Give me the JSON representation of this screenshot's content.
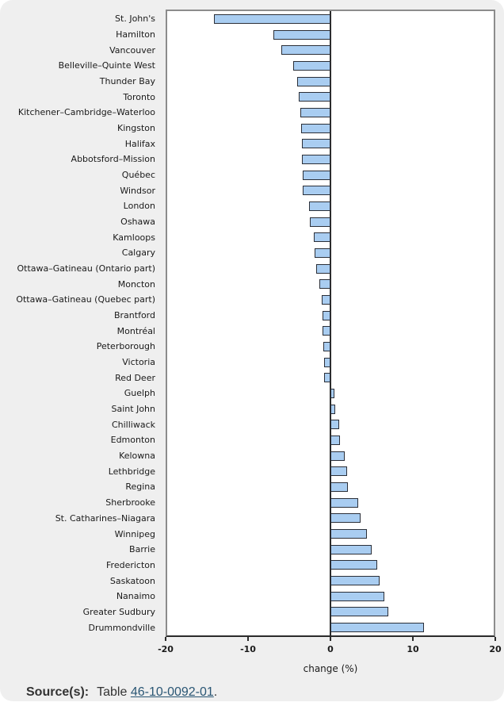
{
  "chart_data": {
    "type": "bar",
    "orientation": "horizontal",
    "title": "",
    "xlabel": "change (%)",
    "ylabel": "",
    "xlim": [
      -20,
      20
    ],
    "xticks": [
      -20,
      -10,
      0,
      10,
      20
    ],
    "grid": false,
    "legend": "none",
    "categories": [
      "St. John's",
      "Hamilton",
      "Vancouver",
      "Belleville–Quinte West",
      "Thunder Bay",
      "Toronto",
      "Kitchener–Cambridge–Waterloo",
      "Kingston",
      "Halifax",
      "Abbotsford–Mission",
      "Québec",
      "Windsor",
      "London",
      "Oshawa",
      "Kamloops",
      "Calgary",
      "Ottawa–Gatineau (Ontario part)",
      "Moncton",
      "Ottawa–Gatineau (Quebec part)",
      "Brantford",
      "Montréal",
      "Peterborough",
      "Victoria",
      "Red Deer",
      "Guelph",
      "Saint John",
      "Chilliwack",
      "Edmonton",
      "Kelowna",
      "Lethbridge",
      "Regina",
      "Sherbrooke",
      "St. Catharines–Niagara",
      "Winnipeg",
      "Barrie",
      "Fredericton",
      "Saskatoon",
      "Nanaimo",
      "Greater Sudbury",
      "Drummondville"
    ],
    "values": [
      -14.3,
      -7.0,
      -6.0,
      -4.6,
      -4.1,
      -3.9,
      -3.7,
      -3.6,
      -3.5,
      -3.5,
      -3.4,
      -3.4,
      -2.6,
      -2.5,
      -2.0,
      -1.9,
      -1.7,
      -1.4,
      -1.1,
      -1.0,
      -1.0,
      -0.9,
      -0.8,
      -0.8,
      0.5,
      0.6,
      1.1,
      1.2,
      1.7,
      2.0,
      2.1,
      3.4,
      3.7,
      4.5,
      5.0,
      5.7,
      6.0,
      6.6,
      7.1,
      11.5
    ],
    "bar_fill": "#a9cdf1",
    "bar_border": "#2b2f38"
  },
  "colors": {
    "card_background": "#efefef",
    "plot_background": "#ffffff",
    "plot_border": "#8c8c8c",
    "axis_line": "#2b2b2b",
    "text": "#1a1a1a",
    "link": "#2a5674"
  },
  "source": {
    "prefix": "Source(s):",
    "table_word": "Table",
    "link_text": "46-10-0092-01",
    "suffix": "."
  }
}
